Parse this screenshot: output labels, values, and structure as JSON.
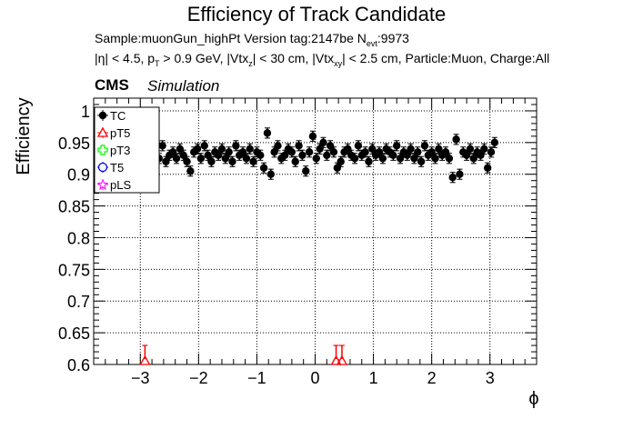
{
  "header": {
    "title": "Efficiency of Track Candidate",
    "line1": "Sample:muonGun_highPt   Version tag:2147be  N_evt:9973",
    "line2": "|η| < 4.5, p_T > 0.9 GeV, |Vtx_z| < 30 cm, |Vtx_xy| < 2.5 cm, Particle:Muon, Charge:All",
    "cms": "CMS",
    "simulation": "Simulation"
  },
  "chart_data": {
    "type": "scatter",
    "title": "Efficiency of Track Candidate",
    "xlabel": "ϕ",
    "ylabel": "Efficiency",
    "xlim": [
      -3.8,
      3.8
    ],
    "ylim": [
      0.6,
      1.02
    ],
    "xticks": [
      -3,
      -2,
      -1,
      0,
      1,
      2,
      3
    ],
    "xtick_labels": [
      "−3",
      "−2",
      "−1",
      "0",
      "1",
      "2",
      "3"
    ],
    "yticks": [
      0.6,
      0.65,
      0.7,
      0.75,
      0.8,
      0.85,
      0.9,
      0.95,
      1
    ],
    "ytick_labels": [
      "0.6",
      "0.65",
      "0.7",
      "0.75",
      "0.8",
      "0.85",
      "0.9",
      "0.95",
      "1"
    ],
    "grid": true,
    "legend_position": "top-left",
    "series": [
      {
        "name": "TC",
        "color": "#000000",
        "marker": "circle",
        "x": [
          -3.05,
          -2.98,
          -2.92,
          -2.86,
          -2.8,
          -2.74,
          -2.68,
          -2.62,
          -2.56,
          -2.5,
          -2.44,
          -2.38,
          -2.32,
          -2.26,
          -2.2,
          -2.14,
          -2.08,
          -2.02,
          -1.96,
          -1.9,
          -1.84,
          -1.78,
          -1.72,
          -1.66,
          -1.6,
          -1.54,
          -1.48,
          -1.42,
          -1.36,
          -1.3,
          -1.24,
          -1.18,
          -1.12,
          -1.06,
          -1.0,
          -0.94,
          -0.88,
          -0.82,
          -0.76,
          -0.7,
          -0.64,
          -0.58,
          -0.52,
          -0.46,
          -0.4,
          -0.34,
          -0.28,
          -0.22,
          -0.16,
          -0.1,
          -0.04,
          0.02,
          0.08,
          0.14,
          0.2,
          0.26,
          0.32,
          0.38,
          0.44,
          0.5,
          0.56,
          0.62,
          0.68,
          0.74,
          0.8,
          0.86,
          0.92,
          0.98,
          1.04,
          1.1,
          1.16,
          1.22,
          1.28,
          1.34,
          1.4,
          1.46,
          1.52,
          1.58,
          1.64,
          1.7,
          1.76,
          1.82,
          1.88,
          1.94,
          2.0,
          2.06,
          2.12,
          2.18,
          2.24,
          2.3,
          2.36,
          2.42,
          2.48,
          2.54,
          2.6,
          2.66,
          2.72,
          2.78,
          2.84,
          2.9,
          2.96,
          3.02,
          3.08
        ],
        "y": [
          0.925,
          0.91,
          0.935,
          0.92,
          0.94,
          0.93,
          0.925,
          0.945,
          0.92,
          0.93,
          0.935,
          0.925,
          0.94,
          0.93,
          0.92,
          0.905,
          0.935,
          0.94,
          0.925,
          0.945,
          0.93,
          0.92,
          0.935,
          0.93,
          0.94,
          0.925,
          0.935,
          0.92,
          0.945,
          0.93,
          0.935,
          0.925,
          0.94,
          0.92,
          0.935,
          0.93,
          0.91,
          0.965,
          0.9,
          0.935,
          0.945,
          0.925,
          0.93,
          0.94,
          0.935,
          0.92,
          0.945,
          0.93,
          0.905,
          0.935,
          0.96,
          0.925,
          0.94,
          0.95,
          0.93,
          0.945,
          0.935,
          0.91,
          0.92,
          0.935,
          0.94,
          0.93,
          0.925,
          0.945,
          0.93,
          0.935,
          0.92,
          0.94,
          0.93,
          0.935,
          0.925,
          0.94,
          0.935,
          0.93,
          0.945,
          0.925,
          0.935,
          0.93,
          0.94,
          0.925,
          0.935,
          0.92,
          0.945,
          0.93,
          0.935,
          0.925,
          0.94,
          0.93,
          0.935,
          0.925,
          0.895,
          0.955,
          0.9,
          0.935,
          0.93,
          0.94,
          0.925,
          0.935,
          0.93,
          0.94,
          0.91,
          0.935,
          0.95
        ],
        "yerr": 0.008
      },
      {
        "name": "pT5",
        "color": "#ff0000",
        "marker": "open-triangle",
        "x": [
          -2.92,
          0.36,
          0.46
        ],
        "y": [
          0.6,
          0.6,
          0.6
        ],
        "yerr_up": 0.03
      },
      {
        "name": "pT3",
        "color": "#00ff00",
        "marker": "open-cross",
        "x": [],
        "y": []
      },
      {
        "name": "T5",
        "color": "#0000ff",
        "marker": "open-circle",
        "x": [],
        "y": []
      },
      {
        "name": "pLS",
        "color": "#ff00ff",
        "marker": "open-star",
        "x": [],
        "y": []
      }
    ]
  }
}
